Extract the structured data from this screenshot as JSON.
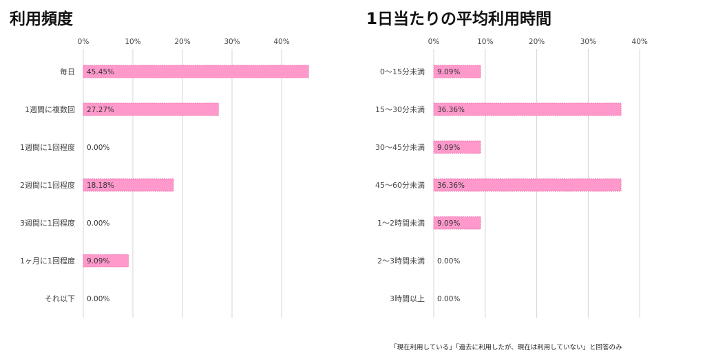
{
  "footnote": "「現在利用している」「過去に利用したが、現在は利用していない」と回答のみ",
  "bar_color": "#ff99cc",
  "bar_stroke": "#f07ab0",
  "grid_color": "#d4d4d4",
  "chart_data": [
    {
      "type": "bar",
      "orientation": "horizontal",
      "title": "利用頻度",
      "categories": [
        "毎日",
        "1週間に複数回",
        "1週間に1回程度",
        "2週間に1回程度",
        "3週間に1回程度",
        "1ヶ月に1回程度",
        "それ以下"
      ],
      "values": [
        45.45,
        27.27,
        0,
        18.18,
        0,
        9.09,
        0
      ],
      "data_labels": [
        "45.45%",
        "27.27%",
        "0.00%",
        "18.18%",
        "0.00%",
        "9.09%",
        "0.00%"
      ],
      "xlim": [
        0,
        50
      ],
      "xticks": [
        0,
        10,
        20,
        30,
        40
      ],
      "xtick_labels": [
        "0%",
        "10%",
        "20%",
        "30%",
        "40%"
      ],
      "grid": true,
      "xlabel": "",
      "ylabel": ""
    },
    {
      "type": "bar",
      "orientation": "horizontal",
      "title": "1日当たりの平均利用時間",
      "categories": [
        "0〜15分未満",
        "15〜30分未満",
        "30〜45分未満",
        "45〜60分未満",
        "1〜2時間未満",
        "2〜3時間未満",
        "3時間以上"
      ],
      "values": [
        9.09,
        36.36,
        9.09,
        36.36,
        9.09,
        0,
        0
      ],
      "data_labels": [
        "9.09%",
        "36.36%",
        "9.09%",
        "36.36%",
        "9.09%",
        "0.00%",
        "0.00%"
      ],
      "xlim": [
        0,
        40
      ],
      "xticks": [
        0,
        10,
        20,
        30,
        40
      ],
      "xtick_labels": [
        "0%",
        "10%",
        "20%",
        "30%",
        "40%"
      ],
      "grid": true,
      "xlabel": "",
      "ylabel": ""
    }
  ]
}
